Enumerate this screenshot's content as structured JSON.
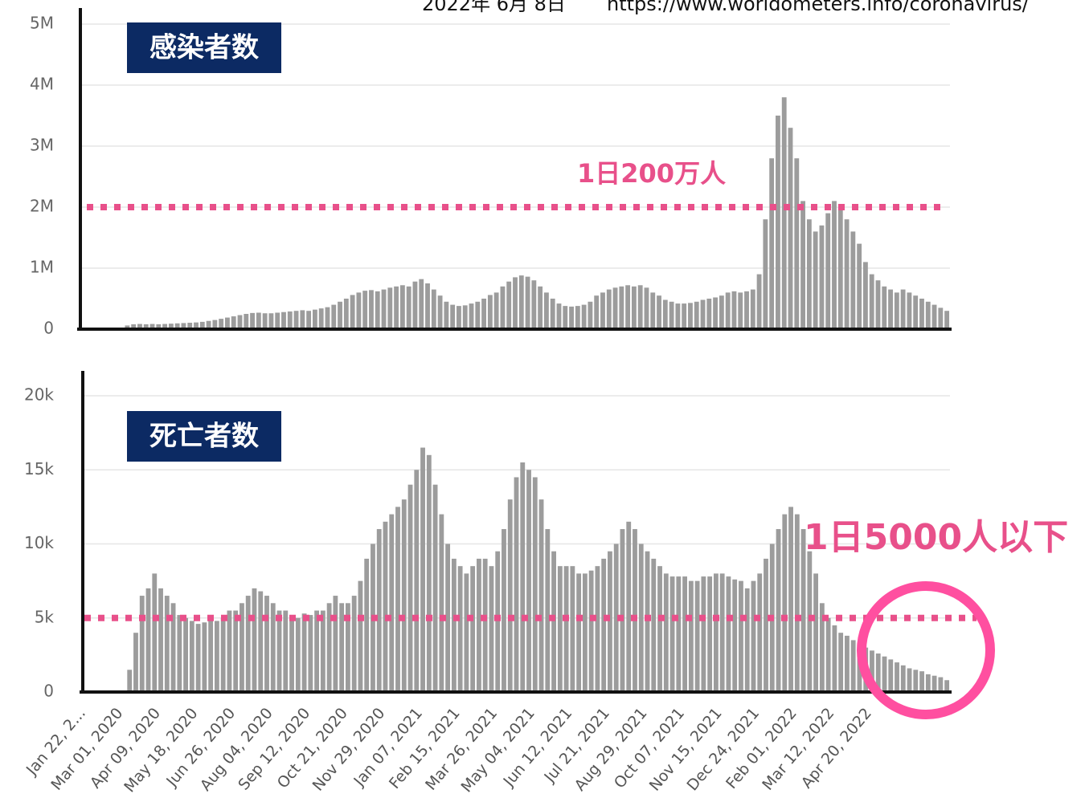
{
  "header": {
    "date": "2022年 6月 8日",
    "source": "https://www.worldometers.info/coronavirus/"
  },
  "chart_data": [
    {
      "type": "bar",
      "title": "感染者数",
      "color": "#9c9c9c",
      "ylim": [
        0,
        5000000
      ],
      "yticks": [
        0,
        {
          "value": 1000000,
          "label": "1M"
        },
        {
          "value": 2000000,
          "label": "2M"
        },
        {
          "value": 3000000,
          "label": "3M"
        },
        {
          "value": 4000000,
          "label": "4M"
        },
        {
          "value": 5000000,
          "label": "5M"
        }
      ],
      "grid": true,
      "reference_line": {
        "value": 2000000,
        "label": "1日200万人",
        "color": "#e8508a"
      },
      "values": [
        500,
        2000,
        3000,
        2000,
        2000,
        5000,
        20000,
        60000,
        80000,
        85000,
        80000,
        85000,
        80000,
        85000,
        90000,
        95000,
        100000,
        105000,
        110000,
        120000,
        135000,
        150000,
        170000,
        190000,
        210000,
        230000,
        250000,
        265000,
        270000,
        260000,
        260000,
        270000,
        280000,
        290000,
        300000,
        310000,
        300000,
        320000,
        340000,
        360000,
        400000,
        450000,
        500000,
        560000,
        600000,
        630000,
        640000,
        620000,
        650000,
        680000,
        700000,
        720000,
        700000,
        780000,
        820000,
        750000,
        650000,
        550000,
        450000,
        400000,
        380000,
        390000,
        420000,
        450000,
        500000,
        560000,
        600000,
        700000,
        780000,
        850000,
        880000,
        860000,
        800000,
        700000,
        600000,
        500000,
        420000,
        380000,
        370000,
        380000,
        400000,
        450000,
        550000,
        600000,
        650000,
        680000,
        700000,
        720000,
        700000,
        720000,
        680000,
        600000,
        550000,
        480000,
        450000,
        420000,
        420000,
        430000,
        450000,
        480000,
        500000,
        520000,
        550000,
        600000,
        620000,
        600000,
        620000,
        650000,
        900000,
        1800000,
        2800000,
        3500000,
        3800000,
        3300000,
        2800000,
        2100000,
        1800000,
        1600000,
        1700000,
        1900000,
        2100000,
        2000000,
        1800000,
        1600000,
        1400000,
        1100000,
        900000,
        800000,
        700000,
        650000,
        600000,
        650000,
        600000,
        550000,
        500000,
        450000,
        400000,
        350000,
        300000
      ]
    },
    {
      "type": "bar",
      "title": "死亡者数",
      "color": "#9c9c9c",
      "ylim": [
        0,
        20000
      ],
      "yticks": [
        0,
        {
          "value": 5000,
          "label": "5k"
        },
        {
          "value": 10000,
          "label": "10k"
        },
        {
          "value": 15000,
          "label": "15k"
        },
        {
          "value": 20000,
          "label": "20k"
        }
      ],
      "grid": true,
      "reference_line": {
        "value": 5000,
        "label": "1日5000人以下",
        "color": "#e8508a"
      },
      "categories": [
        "Jan 22, 2...",
        null,
        null,
        null,
        null,
        null,
        "Mar 01, 2020",
        null,
        null,
        null,
        null,
        null,
        "Apr 09, 2020",
        null,
        null,
        null,
        null,
        null,
        "May 18, 2020",
        null,
        null,
        null,
        null,
        null,
        "Jun 26, 2020",
        null,
        null,
        null,
        null,
        null,
        "Aug 04, 2020",
        null,
        null,
        null,
        null,
        null,
        "Sep 12, 2020",
        null,
        null,
        null,
        null,
        null,
        "Oct 21, 2020",
        null,
        null,
        null,
        null,
        null,
        "Nov 29, 2020",
        null,
        null,
        null,
        null,
        null,
        "Jan 07, 2021",
        null,
        null,
        null,
        null,
        null,
        "Feb 15, 2021",
        null,
        null,
        null,
        null,
        null,
        "Mar 26, 2021",
        null,
        null,
        null,
        null,
        null,
        "May 04, 2021",
        null,
        null,
        null,
        null,
        null,
        "Jun 12, 2021",
        null,
        null,
        null,
        null,
        null,
        "Jul 21, 2021",
        null,
        null,
        null,
        null,
        null,
        "Aug 29, 2021",
        null,
        null,
        null,
        null,
        null,
        "Oct 07, 2021",
        null,
        null,
        null,
        null,
        null,
        "Nov 15, 2021",
        null,
        null,
        null,
        null,
        null,
        "Dec 24, 2021",
        null,
        null,
        null,
        null,
        null,
        "Feb 01, 2022",
        null,
        null,
        null,
        null,
        null,
        "Mar 12, 2022",
        null,
        null,
        null,
        null,
        null,
        "Apr 20, 2022",
        null,
        null,
        null,
        null,
        null,
        null,
        null,
        null,
        null,
        null,
        null,
        null
      ],
      "values": [
        0,
        0,
        0,
        0,
        0,
        10,
        100,
        1500,
        4000,
        6500,
        7000,
        8000,
        7000,
        6500,
        6000,
        5200,
        5000,
        4800,
        4600,
        4700,
        5000,
        4800,
        5000,
        5500,
        5500,
        6000,
        6500,
        7000,
        6800,
        6500,
        6000,
        5500,
        5500,
        5200,
        5000,
        5300,
        5200,
        5500,
        5500,
        6000,
        6500,
        6000,
        6000,
        6500,
        7500,
        9000,
        10000,
        11000,
        11500,
        12000,
        12500,
        13000,
        14000,
        15000,
        16500,
        16000,
        14000,
        12000,
        10000,
        9000,
        8500,
        8000,
        8500,
        9000,
        9000,
        8500,
        9500,
        11000,
        13000,
        14500,
        15500,
        15000,
        14500,
        13000,
        11000,
        9500,
        8500,
        8500,
        8500,
        8000,
        8000,
        8200,
        8500,
        9000,
        9500,
        10000,
        11000,
        11500,
        11000,
        10000,
        9500,
        9000,
        8500,
        8000,
        7800,
        7800,
        7800,
        7500,
        7500,
        7800,
        7800,
        8000,
        8000,
        7800,
        7600,
        7500,
        7000,
        7500,
        8000,
        9000,
        10000,
        11000,
        12000,
        12500,
        12000,
        11000,
        9500,
        8000,
        6000,
        5000,
        4500,
        4000,
        3800,
        3500,
        3200,
        3000,
        2800,
        2600,
        2400,
        2200,
        2000,
        1800,
        1600,
        1500,
        1400,
        1200,
        1100,
        1000,
        800
      ]
    }
  ]
}
